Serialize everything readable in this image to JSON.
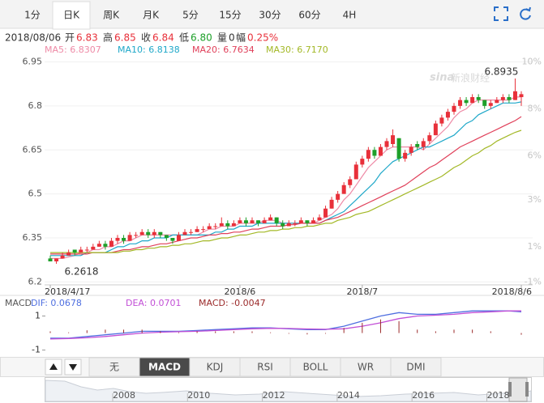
{
  "tabs": [
    "1分",
    "日K",
    "周K",
    "月K",
    "5分",
    "15分",
    "30分",
    "60分",
    "4H"
  ],
  "active_tab": 1,
  "quote": {
    "date": "2018/08/06",
    "items": [
      {
        "label": "开",
        "value": "6.83",
        "color": "#e8303a"
      },
      {
        "label": "高",
        "value": "6.85",
        "color": "#e8303a"
      },
      {
        "label": "收",
        "value": "6.84",
        "color": "#e8303a"
      },
      {
        "label": "低",
        "value": "6.80",
        "color": "#1ea02a"
      },
      {
        "label": "量",
        "value": "0",
        "color": "#333333"
      },
      {
        "label": "幅",
        "value": "0.25%",
        "color": "#e8303a"
      }
    ]
  },
  "watermark": {
    "logo": "sina",
    "text": "新浪财经"
  },
  "chart_data": [
    {
      "type": "candlestick",
      "categories": [
        "2018/4/17",
        null,
        null,
        null,
        null,
        null,
        null,
        null,
        null,
        null,
        null,
        null,
        null,
        null,
        null,
        null,
        null,
        null,
        null,
        null,
        null,
        null,
        null,
        null,
        null,
        null,
        null,
        null,
        null,
        null,
        null,
        "2018/6",
        null,
        null,
        null,
        null,
        null,
        null,
        null,
        null,
        null,
        null,
        null,
        null,
        null,
        null,
        null,
        null,
        null,
        null,
        null,
        "2018/7",
        null,
        null,
        null,
        null,
        null,
        null,
        null,
        null,
        null,
        null,
        null,
        null,
        null,
        null,
        null,
        null,
        null,
        null,
        null,
        null,
        null,
        null,
        null,
        null,
        null,
        "2018/8/6"
      ],
      "up_color": "#e8303a",
      "down_color": "#1ea02a",
      "candles": [
        [
          6.28,
          6.29,
          6.27,
          6.27
        ],
        [
          6.27,
          6.28,
          6.2618,
          6.28
        ],
        [
          6.28,
          6.3,
          6.28,
          6.29
        ],
        [
          6.29,
          6.31,
          6.29,
          6.3
        ],
        [
          6.31,
          6.31,
          6.29,
          6.3
        ],
        [
          6.3,
          6.32,
          6.3,
          6.31
        ],
        [
          6.31,
          6.32,
          6.3,
          6.31
        ],
        [
          6.31,
          6.33,
          6.31,
          6.32
        ],
        [
          6.32,
          6.34,
          6.32,
          6.33
        ],
        [
          6.33,
          6.34,
          6.31,
          6.32
        ],
        [
          6.32,
          6.35,
          6.32,
          6.34
        ],
        [
          6.34,
          6.36,
          6.33,
          6.35
        ],
        [
          6.35,
          6.36,
          6.33,
          6.34
        ],
        [
          6.34,
          6.37,
          6.34,
          6.36
        ],
        [
          6.36,
          6.37,
          6.35,
          6.36
        ],
        [
          6.36,
          6.38,
          6.36,
          6.37
        ],
        [
          6.37,
          6.38,
          6.35,
          6.36
        ],
        [
          6.36,
          6.38,
          6.35,
          6.37
        ],
        [
          6.37,
          6.37,
          6.35,
          6.36
        ],
        [
          6.36,
          6.36,
          6.34,
          6.35
        ],
        [
          6.35,
          6.35,
          6.33,
          6.34
        ],
        [
          6.34,
          6.37,
          6.34,
          6.36
        ],
        [
          6.36,
          6.38,
          6.36,
          6.37
        ],
        [
          6.37,
          6.38,
          6.36,
          6.37
        ],
        [
          6.37,
          6.39,
          6.37,
          6.38
        ],
        [
          6.38,
          6.39,
          6.37,
          6.38
        ],
        [
          6.38,
          6.4,
          6.38,
          6.39
        ],
        [
          6.39,
          6.4,
          6.38,
          6.39
        ],
        [
          6.39,
          6.42,
          6.39,
          6.4
        ],
        [
          6.4,
          6.41,
          6.38,
          6.39
        ],
        [
          6.39,
          6.41,
          6.39,
          6.4
        ],
        [
          6.4,
          6.42,
          6.4,
          6.41
        ],
        [
          6.41,
          6.42,
          6.39,
          6.4
        ],
        [
          6.4,
          6.42,
          6.4,
          6.41
        ],
        [
          6.41,
          6.41,
          6.39,
          6.4
        ],
        [
          6.4,
          6.42,
          6.4,
          6.41
        ],
        [
          6.41,
          6.43,
          6.41,
          6.42
        ],
        [
          6.42,
          6.42,
          6.39,
          6.4
        ],
        [
          6.4,
          6.41,
          6.38,
          6.39
        ],
        [
          6.39,
          6.41,
          6.39,
          6.4
        ],
        [
          6.4,
          6.41,
          6.39,
          6.4
        ],
        [
          6.4,
          6.42,
          6.4,
          6.41
        ],
        [
          6.41,
          6.41,
          6.39,
          6.4
        ],
        [
          6.4,
          6.42,
          6.4,
          6.41
        ],
        [
          6.41,
          6.43,
          6.41,
          6.42
        ],
        [
          6.42,
          6.46,
          6.42,
          6.45
        ],
        [
          6.45,
          6.49,
          6.45,
          6.48
        ],
        [
          6.48,
          6.51,
          6.47,
          6.5
        ],
        [
          6.5,
          6.54,
          6.5,
          6.53
        ],
        [
          6.53,
          6.56,
          6.52,
          6.55
        ],
        [
          6.55,
          6.61,
          6.55,
          6.6
        ],
        [
          6.6,
          6.63,
          6.59,
          6.62
        ],
        [
          6.62,
          6.66,
          6.61,
          6.65
        ],
        [
          6.65,
          6.66,
          6.62,
          6.63
        ],
        [
          6.63,
          6.67,
          6.63,
          6.66
        ],
        [
          6.66,
          6.69,
          6.65,
          6.68
        ],
        [
          6.67,
          6.72,
          6.66,
          6.7
        ],
        [
          6.69,
          6.69,
          6.61,
          6.62
        ],
        [
          6.62,
          6.65,
          6.61,
          6.64
        ],
        [
          6.64,
          6.67,
          6.63,
          6.66
        ],
        [
          6.67,
          6.68,
          6.65,
          6.66
        ],
        [
          6.66,
          6.69,
          6.65,
          6.68
        ],
        [
          6.68,
          6.71,
          6.67,
          6.7
        ],
        [
          6.7,
          6.75,
          6.7,
          6.74
        ],
        [
          6.74,
          6.77,
          6.73,
          6.76
        ],
        [
          6.76,
          6.79,
          6.75,
          6.78
        ],
        [
          6.78,
          6.81,
          6.77,
          6.8
        ],
        [
          6.8,
          6.83,
          6.79,
          6.82
        ],
        [
          6.82,
          6.83,
          6.8,
          6.81
        ],
        [
          6.81,
          6.84,
          6.81,
          6.83
        ],
        [
          6.83,
          6.84,
          6.81,
          6.82
        ],
        [
          6.82,
          6.82,
          6.79,
          6.8
        ],
        [
          6.8,
          6.82,
          6.79,
          6.81
        ],
        [
          6.81,
          6.83,
          6.81,
          6.82
        ],
        [
          6.82,
          6.84,
          6.81,
          6.83
        ],
        [
          6.83,
          6.84,
          6.81,
          6.82
        ],
        [
          6.82,
          6.8935,
          6.82,
          6.85
        ],
        [
          6.83,
          6.85,
          6.8,
          6.84
        ]
      ],
      "series": [
        {
          "name": "MA5: 6.8307",
          "color": "#ee8aa6",
          "values": [
            6.28,
            6.28,
            6.28,
            6.285,
            6.29,
            6.3,
            6.3,
            6.31,
            6.31,
            6.32,
            6.32,
            6.33,
            6.34,
            6.34,
            6.35,
            6.36,
            6.36,
            6.36,
            6.36,
            6.36,
            6.36,
            6.36,
            6.36,
            6.36,
            6.36,
            6.37,
            6.38,
            6.38,
            6.39,
            6.39,
            6.39,
            6.4,
            6.4,
            6.4,
            6.4,
            6.41,
            6.41,
            6.41,
            6.4,
            6.4,
            6.4,
            6.4,
            6.4,
            6.4,
            6.41,
            6.42,
            6.43,
            6.45,
            6.48,
            6.5,
            6.53,
            6.56,
            6.59,
            6.61,
            6.63,
            6.65,
            6.66,
            6.66,
            6.66,
            6.66,
            6.66,
            6.65,
            6.67,
            6.69,
            6.71,
            6.73,
            6.76,
            6.78,
            6.79,
            6.81,
            6.82,
            6.82,
            6.82,
            6.82,
            6.82,
            6.82,
            6.83,
            6.8307
          ]
        },
        {
          "name": "MA10: 6.8138",
          "color": "#1fa8c9",
          "values": [
            6.29,
            6.29,
            6.29,
            6.29,
            6.29,
            6.29,
            6.3,
            6.3,
            6.3,
            6.3,
            6.31,
            6.32,
            6.32,
            6.33,
            6.33,
            6.34,
            6.34,
            6.35,
            6.35,
            6.35,
            6.36,
            6.36,
            6.36,
            6.36,
            6.36,
            6.36,
            6.36,
            6.37,
            6.37,
            6.38,
            6.38,
            6.39,
            6.39,
            6.39,
            6.4,
            6.4,
            6.4,
            6.4,
            6.4,
            6.4,
            6.4,
            6.4,
            6.4,
            6.4,
            6.4,
            6.41,
            6.42,
            6.43,
            6.44,
            6.46,
            6.48,
            6.5,
            6.52,
            6.54,
            6.57,
            6.59,
            6.61,
            6.62,
            6.63,
            6.64,
            6.65,
            6.66,
            6.66,
            6.67,
            6.68,
            6.69,
            6.7,
            6.72,
            6.74,
            6.75,
            6.77,
            6.78,
            6.79,
            6.8,
            6.81,
            6.81,
            6.81,
            6.8138
          ]
        },
        {
          "name": "MA20: 6.7634",
          "color": "#e0405a",
          "values": [
            6.295,
            6.295,
            6.295,
            6.295,
            6.295,
            6.295,
            6.295,
            6.3,
            6.3,
            6.3,
            6.3,
            6.305,
            6.31,
            6.31,
            6.315,
            6.32,
            6.32,
            6.325,
            6.33,
            6.33,
            6.335,
            6.34,
            6.345,
            6.35,
            6.35,
            6.355,
            6.36,
            6.36,
            6.365,
            6.365,
            6.37,
            6.37,
            6.375,
            6.38,
            6.38,
            6.385,
            6.39,
            6.39,
            6.39,
            6.395,
            6.395,
            6.4,
            6.4,
            6.4,
            6.4,
            6.41,
            6.415,
            6.42,
            6.43,
            6.44,
            6.45,
            6.46,
            6.47,
            6.48,
            6.49,
            6.5,
            6.51,
            6.52,
            6.53,
            6.545,
            6.56,
            6.575,
            6.59,
            6.6,
            6.615,
            6.63,
            6.645,
            6.66,
            6.67,
            6.68,
            6.69,
            6.7,
            6.71,
            6.72,
            6.73,
            6.74,
            6.75,
            6.7634
          ]
        },
        {
          "name": "MA30: 6.7170",
          "color": "#a3b826",
          "values": [
            6.3,
            6.3,
            6.3,
            6.3,
            6.3,
            6.3,
            6.3,
            6.3,
            6.3,
            6.3,
            6.3,
            6.3,
            6.305,
            6.305,
            6.31,
            6.31,
            6.315,
            6.315,
            6.32,
            6.32,
            6.325,
            6.325,
            6.33,
            6.33,
            6.335,
            6.34,
            6.34,
            6.345,
            6.35,
            6.35,
            6.355,
            6.36,
            6.36,
            6.365,
            6.37,
            6.37,
            6.375,
            6.375,
            6.38,
            6.38,
            6.385,
            6.385,
            6.39,
            6.39,
            6.395,
            6.4,
            6.4,
            6.41,
            6.415,
            6.42,
            6.43,
            6.435,
            6.44,
            6.45,
            6.46,
            6.47,
            6.48,
            6.49,
            6.5,
            6.51,
            6.52,
            6.53,
            6.54,
            6.55,
            6.56,
            6.575,
            6.59,
            6.6,
            6.615,
            6.63,
            6.64,
            6.655,
            6.665,
            6.68,
            6.69,
            6.7,
            6.71,
            6.717
          ]
        }
      ],
      "ylim": [
        6.19,
        6.99
      ],
      "yticks": [
        6.95,
        6.8,
        6.65,
        6.5,
        6.35,
        6.2
      ],
      "right_labels": [
        {
          "value": 6.95,
          "label": "10%"
        },
        {
          "value": 6.79,
          "label": "8%"
        },
        {
          "value": 6.63,
          "label": "6%"
        },
        {
          "value": 6.48,
          "label": "3%"
        },
        {
          "value": 6.32,
          "label": "1%"
        },
        {
          "value": 6.2,
          "label": "-1%"
        }
      ],
      "grid": true
    },
    {
      "type": "macd",
      "title": "MACD",
      "x": [
        0,
        3,
        6,
        9,
        12,
        15,
        18,
        21,
        24,
        27,
        30,
        33,
        36,
        39,
        42,
        45,
        48,
        51,
        54,
        57,
        60,
        63,
        66,
        69,
        72,
        75,
        77
      ],
      "series": [
        {
          "name": "DIF: 0.0678",
          "color": "#4f6fe0",
          "values": [
            -0.3,
            -0.3,
            -0.2,
            -0.1,
            0.0,
            0.1,
            0.1,
            0.1,
            0.15,
            0.2,
            0.25,
            0.3,
            0.3,
            0.25,
            0.2,
            0.2,
            0.4,
            0.7,
            1.0,
            1.2,
            1.1,
            1.1,
            1.2,
            1.3,
            1.3,
            1.3,
            1.25
          ]
        },
        {
          "name": "DEA: 0.0701",
          "color": "#c24fd6",
          "values": [
            -0.35,
            -0.32,
            -0.28,
            -0.2,
            -0.1,
            0.0,
            0.05,
            0.08,
            0.1,
            0.15,
            0.2,
            0.25,
            0.28,
            0.27,
            0.24,
            0.22,
            0.25,
            0.4,
            0.6,
            0.85,
            1.0,
            1.05,
            1.1,
            1.2,
            1.25,
            1.3,
            1.3
          ]
        },
        {
          "name": "MACD: -0.0047",
          "color": "#9b2a2a",
          "style": "bar",
          "values": [
            0.1,
            0.04,
            0.16,
            0.2,
            0.2,
            0.2,
            0.1,
            0.04,
            0.1,
            0.1,
            0.1,
            0.1,
            0.04,
            -0.04,
            -0.08,
            -0.04,
            0.3,
            0.6,
            0.8,
            0.7,
            0.2,
            0.1,
            0.2,
            0.2,
            0.1,
            0,
            -0.1
          ]
        }
      ],
      "ylim": [
        -1.4,
        1.5
      ],
      "yticks": [
        1,
        -1
      ]
    }
  ],
  "indicator_tabs": [
    "无",
    "MACD",
    "KDJ",
    "RSI",
    "BOLL",
    "WR",
    "DMI"
  ],
  "active_indicator": 1,
  "navigator_years": [
    "2008",
    "2010",
    "2012",
    "2014",
    "2016",
    "2018"
  ]
}
